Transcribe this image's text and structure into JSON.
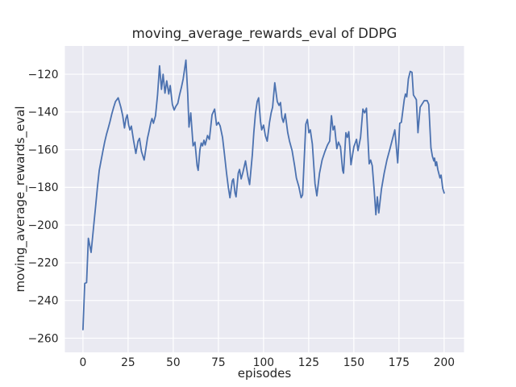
{
  "chart_data": {
    "type": "line",
    "title": "moving_average_rewards_eval of DDPG",
    "xlabel": "episodes",
    "ylabel": "moving_average_rewards_eval",
    "xlim": [
      -10,
      211
    ],
    "ylim": [
      -267.5,
      -105
    ],
    "xticks": [
      0,
      25,
      50,
      75,
      100,
      125,
      150,
      175,
      200
    ],
    "yticks": [
      -260,
      -240,
      -220,
      -200,
      -180,
      -160,
      -140,
      -120
    ],
    "grid": true,
    "legend_position": "none",
    "style": {
      "fig_bg": "#FFFFFF",
      "axes_bg": "#EAEAF2",
      "grid_color": "#FFFFFF",
      "line_color": "#4C72B0",
      "text_color": "#262626"
    },
    "series": [
      {
        "name": "moving_average_rewards_eval",
        "x": [
          0,
          1,
          2,
          3,
          4.5,
          6,
          7,
          8,
          9,
          10,
          11,
          12,
          13,
          14,
          15,
          16,
          17,
          18,
          19.5,
          21,
          22,
          23,
          23.8,
          24.5,
          25.3,
          26,
          26.8,
          28,
          29.3,
          30.5,
          31.3,
          32.4,
          33.9,
          34.7,
          35.7,
          36.5,
          37.6,
          38.2,
          39,
          40.2,
          41.3,
          42.4,
          43.5,
          44.4,
          45.4,
          46.4,
          47.5,
          48.3,
          49.5,
          50.5,
          51.5,
          52.5,
          53.5,
          54.5,
          55.5,
          57,
          58,
          58.7,
          59.7,
          61,
          62,
          63.2,
          63.8,
          64.8,
          65.5,
          66.2,
          67,
          67.7,
          69,
          70,
          71.5,
          72.9,
          74,
          75,
          76,
          77.3,
          78.3,
          79.5,
          80.5,
          81.4,
          82.7,
          83.3,
          84.2,
          84.8,
          86,
          86.7,
          87.6,
          88.6,
          90,
          91.3,
          92.3,
          93.8,
          94.6,
          95.5,
          96.5,
          97.3,
          98.3,
          99,
          100,
          101,
          102,
          103.3,
          104.2,
          105,
          106.2,
          107.6,
          108.6,
          109.4,
          110.2,
          111,
          112,
          113.4,
          114.4,
          115.8,
          117.3,
          118.2,
          119.5,
          120.8,
          121.6,
          123.4,
          124.3,
          125.1,
          125.9,
          127,
          128.5,
          129.5,
          131,
          132.4,
          134,
          135.4,
          136.6,
          137.6,
          138.5,
          139.3,
          140.6,
          141.5,
          142.6,
          143.8,
          144.3,
          145.6,
          146.4,
          147.2,
          148.4,
          150,
          151.5,
          152.3,
          153.7,
          155,
          156,
          157,
          158.5,
          159.3,
          160.2,
          161.3,
          162.2,
          163,
          163.8,
          165.3,
          166.8,
          168.3,
          170,
          171.5,
          172.7,
          174.3,
          175.4,
          176.3,
          177.9,
          178.6,
          179.3,
          180.2,
          181.2,
          182.2,
          183,
          184,
          184.6,
          185.5,
          186.7,
          188,
          189,
          190.6,
          191.5,
          192.7,
          193.5,
          194.3,
          194.7,
          195.3,
          195.8,
          196.5,
          197.7,
          198.3,
          199.2,
          200
        ],
        "y": [
          -255.5,
          -231,
          -230.5,
          -207,
          -214.5,
          -200,
          -190,
          -180,
          -171,
          -166,
          -161,
          -156,
          -152,
          -148.5,
          -145,
          -141,
          -137.5,
          -134.5,
          -132.5,
          -137.5,
          -142,
          -148.5,
          -143.5,
          -141.5,
          -147,
          -149.5,
          -147.5,
          -155,
          -162,
          -155.5,
          -154,
          -161,
          -165.5,
          -160.5,
          -154,
          -150.5,
          -145.5,
          -143.5,
          -146,
          -142,
          -131,
          -115.5,
          -128,
          -120,
          -130,
          -123.5,
          -130.5,
          -126,
          -136,
          -139,
          -137,
          -135.5,
          -131,
          -127,
          -122.5,
          -112.5,
          -130,
          -148,
          -140.5,
          -158,
          -156,
          -168.5,
          -171,
          -160,
          -156.5,
          -158,
          -155,
          -157.5,
          -152.5,
          -154.5,
          -141.5,
          -138.5,
          -147,
          -145.5,
          -147.5,
          -153.5,
          -162,
          -172.5,
          -180,
          -185.5,
          -176.5,
          -175.5,
          -183,
          -185,
          -172.5,
          -170.5,
          -175.5,
          -172,
          -166,
          -174,
          -178.5,
          -162.5,
          -151,
          -141,
          -134.5,
          -132.5,
          -145,
          -149.5,
          -147,
          -152.5,
          -155.5,
          -145.5,
          -140.5,
          -137.5,
          -124.5,
          -134.5,
          -136.5,
          -135,
          -143,
          -145.5,
          -141,
          -151,
          -155.5,
          -160.5,
          -169,
          -175,
          -179.5,
          -185.5,
          -184,
          -146.5,
          -144,
          -151,
          -149.5,
          -157,
          -178,
          -184.5,
          -172.5,
          -165.5,
          -161,
          -157.5,
          -155.5,
          -142,
          -149.5,
          -147.5,
          -159.5,
          -156,
          -158.5,
          -171,
          -172.5,
          -151,
          -153.5,
          -150.5,
          -168,
          -158.5,
          -154.5,
          -160.5,
          -153.5,
          -138.5,
          -140.5,
          -138,
          -167.5,
          -165.5,
          -168.5,
          -182,
          -194.5,
          -185,
          -193.5,
          -181,
          -172.5,
          -165.5,
          -159.5,
          -154,
          -149.5,
          -167,
          -146,
          -145.5,
          -133.5,
          -130.5,
          -132,
          -122.5,
          -118.5,
          -119,
          -131,
          -132.5,
          -133.5,
          -151,
          -137.5,
          -135.5,
          -134,
          -134,
          -136,
          -159,
          -163.5,
          -166,
          -164.5,
          -168.5,
          -166.5,
          -170.5,
          -175,
          -173.5,
          -180.5,
          -183
        ]
      }
    ]
  }
}
